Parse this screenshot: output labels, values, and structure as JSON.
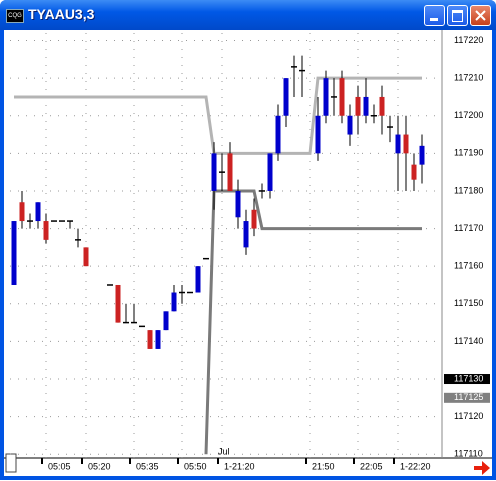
{
  "window": {
    "title": "TYAAU3,3",
    "icon": "CQG"
  },
  "chart_data": {
    "type": "candlestick",
    "categories": [
      null,
      null,
      null,
      null,
      "05:05",
      null,
      null,
      null,
      null,
      "05:20",
      null,
      null,
      null,
      null,
      null,
      "05:35",
      null,
      null,
      null,
      null,
      null,
      "05:50",
      null,
      null,
      null,
      null,
      "1-21:20",
      null,
      null,
      null,
      null,
      null,
      null,
      null,
      null,
      null,
      null,
      "21:50",
      null,
      null,
      null,
      null,
      null,
      "22:05",
      null,
      null,
      null,
      null,
      "1-22:20",
      null,
      null,
      null,
      null
    ],
    "open": [
      117155,
      117177,
      117172,
      117172,
      117172,
      117172,
      117172,
      117172,
      117167,
      117165,
      null,
      null,
      117155,
      117155,
      117145,
      117145,
      117144,
      117143,
      117138,
      117143,
      117148,
      117153,
      117153,
      117153,
      117162,
      117180,
      117185,
      117190,
      117173,
      117165,
      117175,
      117180,
      117180,
      117190,
      117200,
      117213,
      117212,
      null,
      117190,
      117200,
      117205,
      117210,
      117195,
      117205,
      117200,
      117200,
      117205,
      117197,
      117190,
      117195,
      117187,
      117187,
      null
    ],
    "high": [
      117172,
      117180,
      117174,
      117177,
      117174,
      117172,
      117172,
      117172,
      117170,
      117165,
      null,
      null,
      117155,
      117155,
      117150,
      117150,
      117144,
      117143,
      117143,
      117148,
      117155,
      117155,
      117153,
      117160,
      117162,
      117193,
      117190,
      117193,
      117183,
      117175,
      117178,
      117182,
      117190,
      117203,
      117210,
      117216,
      117216,
      null,
      117205,
      117212,
      117210,
      117212,
      117203,
      117208,
      117210,
      117203,
      117208,
      117200,
      117200,
      117200,
      117190,
      117195,
      null
    ],
    "low": [
      117155,
      117170,
      117170,
      117170,
      117166,
      117172,
      117172,
      117170,
      117165,
      117160,
      null,
      null,
      117155,
      117145,
      117145,
      117145,
      117144,
      117138,
      117138,
      117143,
      117148,
      117150,
      117153,
      117153,
      117162,
      117175,
      117180,
      117180,
      117170,
      117163,
      117168,
      117178,
      117178,
      117188,
      117197,
      117205,
      117205,
      null,
      117188,
      117198,
      117200,
      117198,
      117192,
      117195,
      117198,
      117198,
      117195,
      117193,
      117180,
      117180,
      117180,
      117182,
      null
    ],
    "close": [
      117172,
      117172,
      117172,
      117177,
      117167,
      117172,
      117172,
      117172,
      117167,
      117160,
      null,
      null,
      117155,
      117145,
      117145,
      117145,
      117144,
      117138,
      117143,
      117148,
      117153,
      117153,
      117153,
      117160,
      117162,
      117190,
      117185,
      117180,
      117180,
      117172,
      117170,
      117180,
      117190,
      117200,
      117210,
      117213,
      117212,
      null,
      117200,
      117210,
      117205,
      117200,
      117200,
      117200,
      117205,
      117200,
      117200,
      117197,
      117195,
      117190,
      117183,
      117192,
      null
    ],
    "up_color": "#0000cc",
    "down_color": "#cc2222",
    "doji_color": "#000000",
    "lines": [
      {
        "color": "#b4b4b4",
        "values": [
          117205,
          117205,
          117205,
          117205,
          117205,
          117205,
          117205,
          117205,
          117205,
          117205,
          117205,
          117205,
          117205,
          117205,
          117205,
          117205,
          117205,
          117205,
          117205,
          117205,
          117205,
          117205,
          117205,
          117205,
          117205,
          117190,
          117190,
          117190,
          117190,
          117190,
          117190,
          117190,
          117190,
          117190,
          117190,
          117190,
          117190,
          117190,
          117210,
          117210,
          117210,
          117210,
          117210,
          117210,
          117210,
          117210,
          117210,
          117210,
          117210,
          117210,
          117210,
          117210,
          null
        ]
      },
      {
        "color": "#7a7a7a",
        "values": [
          null,
          null,
          null,
          null,
          null,
          null,
          null,
          null,
          null,
          null,
          null,
          null,
          null,
          null,
          null,
          null,
          null,
          null,
          null,
          null,
          null,
          null,
          null,
          null,
          117110,
          117180,
          117180,
          117180,
          117180,
          117180,
          117180,
          117170,
          117170,
          117170,
          117170,
          117170,
          117170,
          117170,
          117170,
          117170,
          117170,
          117170,
          117170,
          117170,
          117170,
          117170,
          117170,
          117170,
          117170,
          117170,
          117170,
          117170,
          null
        ]
      }
    ],
    "annotation": "Jul",
    "ylim": [
      117109,
      117222
    ],
    "yticks": [
      117110,
      117120,
      117130,
      117140,
      117150,
      117160,
      117170,
      117180,
      117190,
      117200,
      117210,
      117220
    ],
    "price_markers": [
      {
        "value": 117130,
        "color": "#000000"
      },
      {
        "value": 117125,
        "color": "#808080"
      }
    ],
    "grid": true
  }
}
